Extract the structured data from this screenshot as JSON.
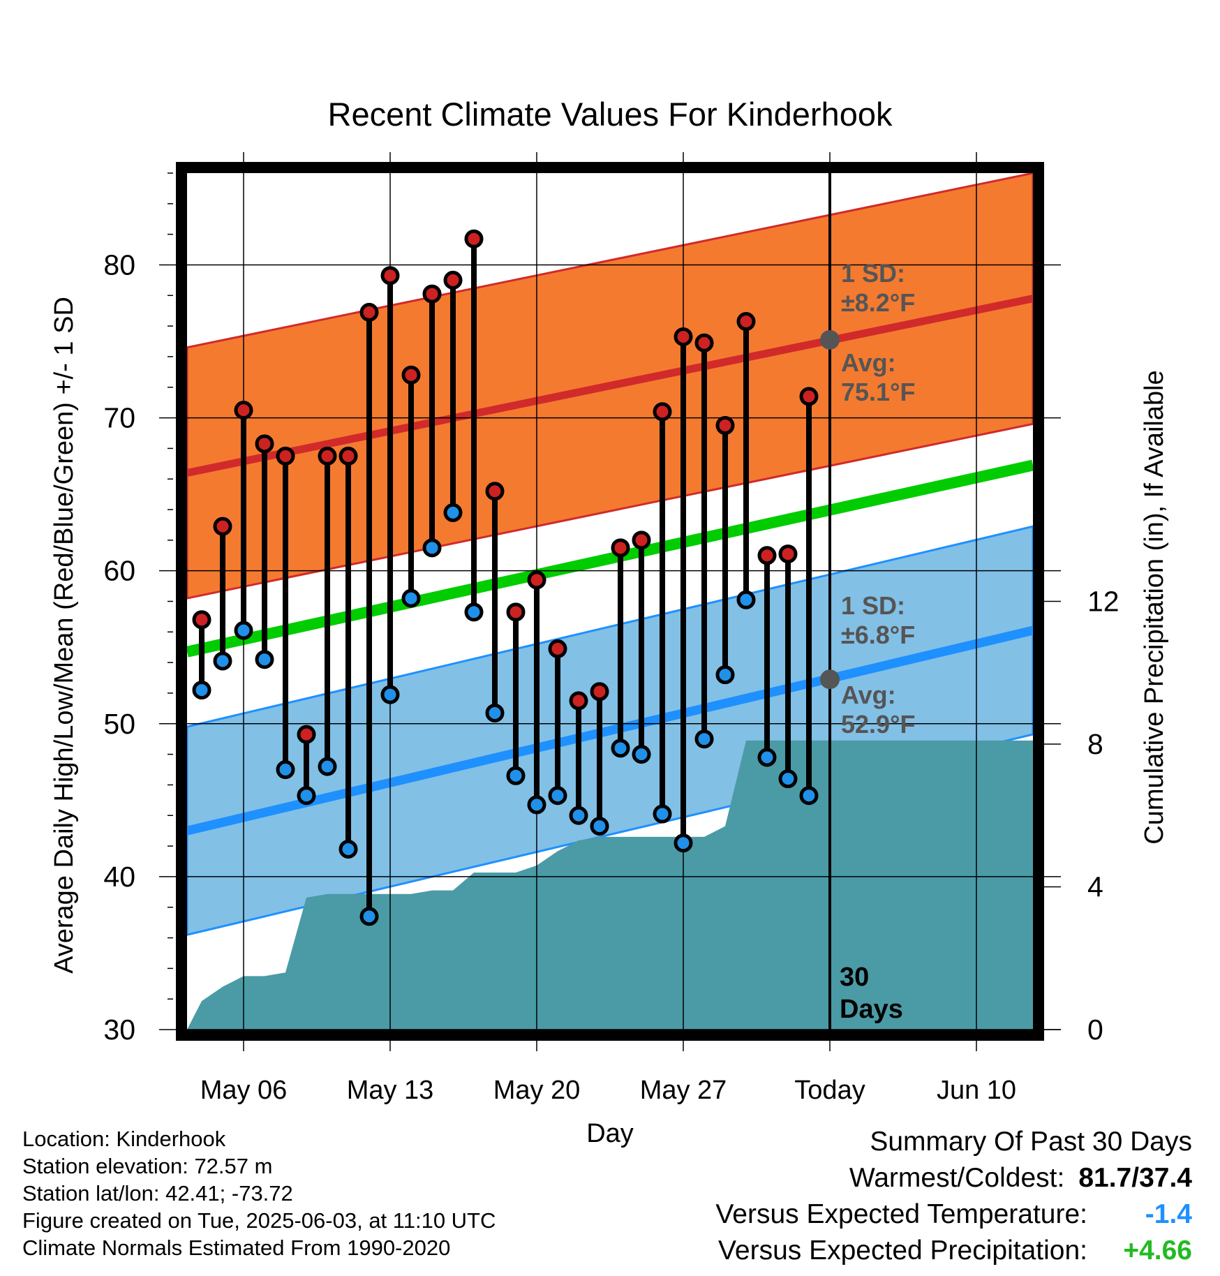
{
  "chart_data": {
    "type": "line",
    "title": "Recent Climate Values For Kinderhook",
    "xlabel": "Day",
    "ylabel": "Average Daily High/Low/Mean (Red/Blue/Green) +/- 1 SD",
    "y2label": "Cumulative Precipitation (in), If Available",
    "ylim": [
      30,
      86
    ],
    "y2lim": [
      0,
      24
    ],
    "yticks": [
      30,
      40,
      50,
      60,
      70,
      80
    ],
    "y2ticks": [
      0,
      4,
      8,
      12
    ],
    "xticks": [
      {
        "day": 6,
        "label": "May 06"
      },
      {
        "day": 13,
        "label": "May 13"
      },
      {
        "day": 20,
        "label": "May 20"
      },
      {
        "day": 27,
        "label": "May 27"
      },
      {
        "day": 34,
        "label": "Today"
      },
      {
        "day": 41,
        "label": "Jun 10"
      }
    ],
    "xlim": [
      3.3,
      43.7
    ],
    "today_day": 34,
    "today_label": "30\nDays",
    "days": [
      4,
      5,
      6,
      7,
      8,
      9,
      10,
      11,
      12,
      13,
      14,
      15,
      16,
      17,
      18,
      19,
      20,
      21,
      22,
      23,
      24,
      25,
      26,
      27,
      28,
      29,
      30,
      31,
      32,
      33
    ],
    "highs": [
      56.8,
      62.9,
      70.5,
      68.3,
      67.5,
      49.3,
      67.5,
      67.5,
      76.9,
      79.3,
      72.8,
      78.1,
      79.0,
      81.7,
      65.2,
      57.3,
      59.4,
      54.9,
      51.5,
      52.1,
      61.5,
      62.0,
      70.4,
      75.3,
      74.9,
      69.5,
      76.3,
      61.0,
      61.1,
      71.4
    ],
    "lows": [
      52.2,
      54.1,
      56.1,
      54.2,
      47.0,
      45.3,
      47.2,
      41.8,
      37.4,
      51.9,
      58.2,
      61.5,
      63.8,
      57.3,
      50.7,
      46.6,
      44.7,
      45.3,
      44.0,
      43.3,
      48.4,
      48.0,
      44.1,
      42.2,
      49.0,
      53.2,
      58.1,
      47.8,
      46.4,
      45.3
    ],
    "normal_high": {
      "start": 66.4,
      "end": 77.8,
      "sd": 8.2
    },
    "normal_low": {
      "start": 43.0,
      "end": 56.1,
      "sd": 6.8
    },
    "normal_mean": {
      "start": 54.7,
      "end": 66.9
    },
    "precip": [
      0,
      0.8,
      1.2,
      1.5,
      1.5,
      1.6,
      3.7,
      3.8,
      3.8,
      3.8,
      3.8,
      3.8,
      3.9,
      3.9,
      4.4,
      4.4,
      4.4,
      4.6,
      5.0,
      5.3,
      5.4,
      5.4,
      5.4,
      5.4,
      5.4,
      5.4,
      5.7,
      8.1,
      8.1,
      8.1,
      8.1
    ],
    "precip_days": [
      3.3,
      4,
      5,
      6,
      7,
      8,
      9,
      10,
      11,
      12,
      13,
      14,
      15,
      16,
      17,
      18,
      19,
      20,
      21,
      22,
      23,
      24,
      25,
      26,
      27,
      28,
      29,
      30,
      31,
      33,
      43.7
    ],
    "annotations": {
      "high_sd": "1 SD:\n±8.2°F",
      "high_avg": "Avg:\n75.1°F",
      "high_avg_value": 75.1,
      "low_sd": "1 SD:\n±6.8°F",
      "low_avg": "Avg:\n52.9°F",
      "low_avg_value": 52.9
    },
    "colors": {
      "high_band": "#f47a30",
      "high_line": "#d12a2a",
      "low_band": "#82c0e6",
      "low_line": "#1e90ff",
      "mean_line": "#00cc00",
      "precip": "#4a9ba6",
      "high_dot": "#cc2222",
      "low_dot": "#2090e8",
      "annotation": "#555555"
    },
    "grid": true
  },
  "footer": {
    "location": "Location: Kinderhook",
    "elevation": "Station elevation: 72.57 m",
    "latlon": "Station lat/lon: 42.41; -73.72",
    "created": "Figure created on Tue, 2025-06-03, at 11:10 UTC",
    "normals": "Climate Normals Estimated From 1990-2020"
  },
  "summary": {
    "title": "Summary Of Past 30 Days",
    "warmest_label": "Warmest/Coldest:",
    "warmest_value": "81.7/37.4",
    "temp_label": "Versus Expected Temperature:",
    "temp_value": "-1.4",
    "temp_color": "#1e90ff",
    "precip_label": "Versus Expected Precipitation:",
    "precip_value": "+4.66",
    "precip_color": "#22bb22"
  }
}
